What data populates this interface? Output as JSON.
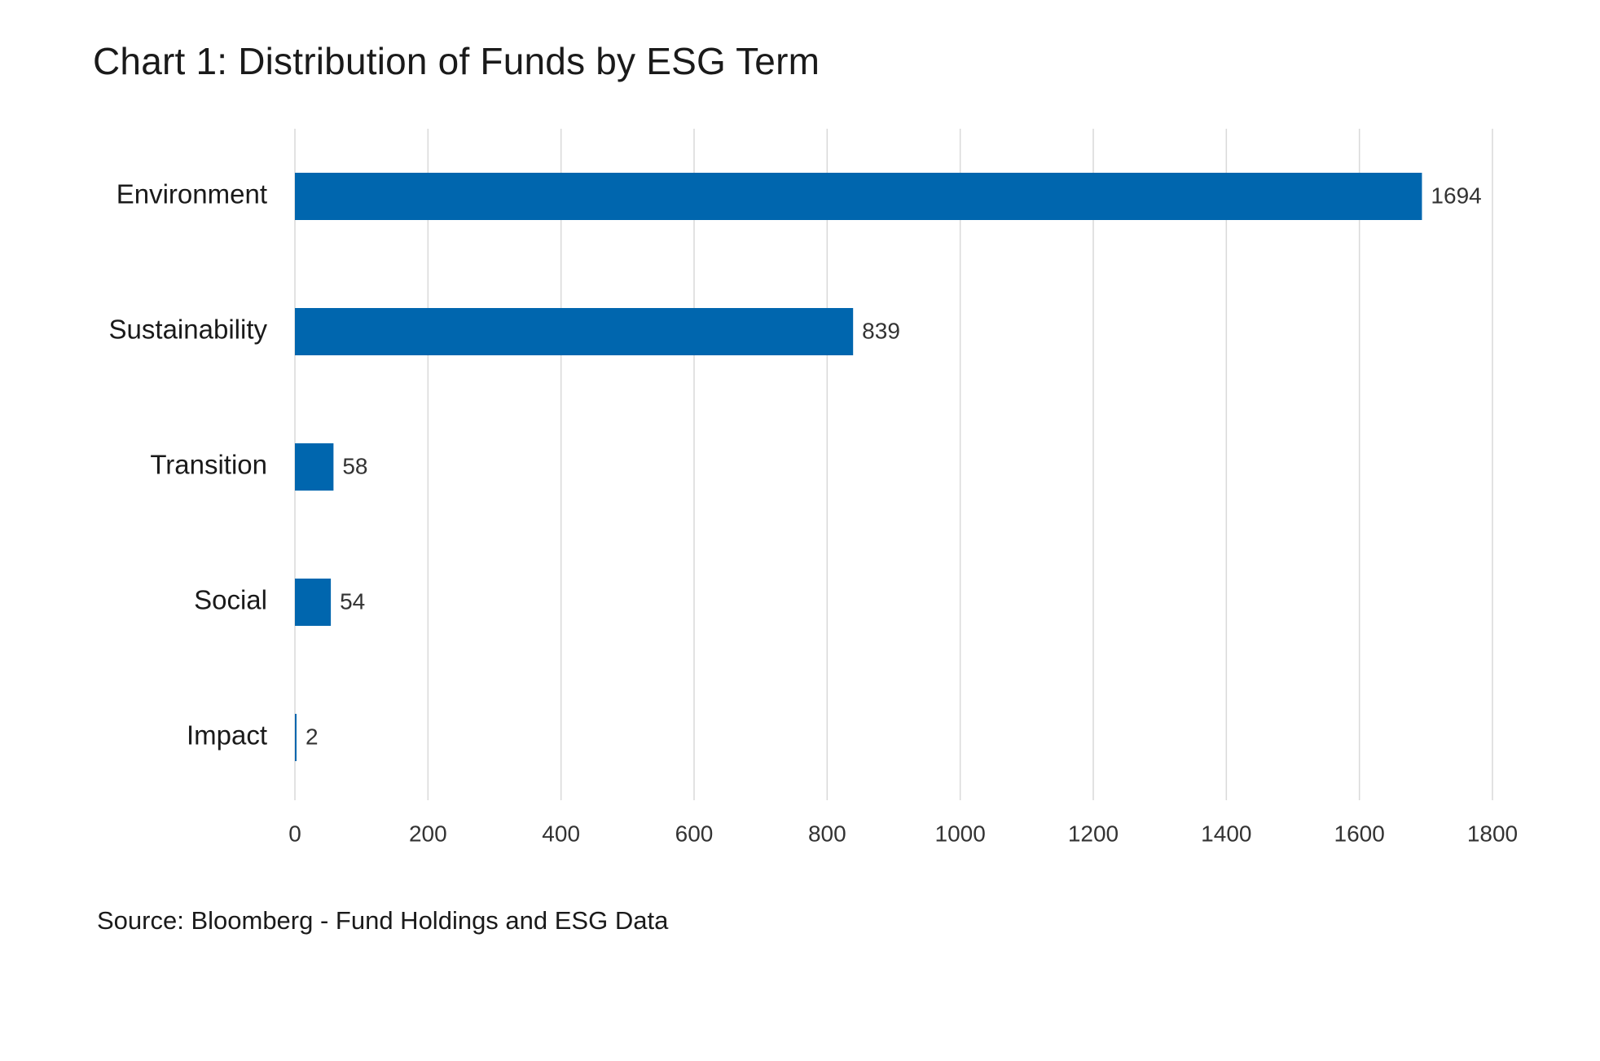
{
  "chart_data": {
    "type": "bar",
    "orientation": "horizontal",
    "title": "Chart 1: Distribution of Funds by ESG Term",
    "source": "Source: Bloomberg - Fund Holdings and ESG Data",
    "categories": [
      "Environment",
      "Sustainability",
      "Transition",
      "Social",
      "Impact"
    ],
    "values": [
      1694,
      839,
      58,
      54,
      2
    ],
    "data_labels": [
      "1694",
      "839",
      "58",
      "54",
      "2"
    ],
    "xlim": [
      0,
      1800
    ],
    "x_ticks": [
      0,
      200,
      400,
      600,
      800,
      1000,
      1200,
      1400,
      1600,
      1800
    ],
    "x_tick_labels": [
      "0",
      "200",
      "400",
      "600",
      "800",
      "1000",
      "1200",
      "1400",
      "1600",
      "1800"
    ],
    "xlabel": "",
    "ylabel": "",
    "grid": "vertical",
    "legend": "none",
    "bar_color": "#0066ae",
    "grid_color": "#d9d9d9"
  }
}
